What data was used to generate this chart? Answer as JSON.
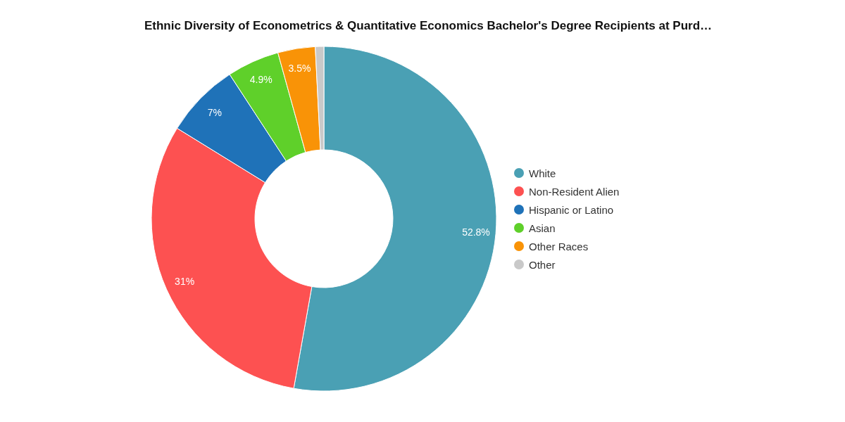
{
  "chart_data": {
    "type": "donut",
    "title": "Ethnic Diversity of Econometrics & Quantitative Economics Bachelor's Degree Recipients at Purd…",
    "categories": [
      "White",
      "Non-Resident Alien",
      "Hispanic or Latino",
      "Asian",
      "Other Races",
      "Other"
    ],
    "values": [
      52.8,
      31,
      7,
      4.9,
      3.5,
      0.8
    ],
    "colors": [
      "#4aa0b4",
      "#fd5151",
      "#1f72b8",
      "#5fd02a",
      "#f99307",
      "#c9c9c9"
    ],
    "value_labels": [
      "52.8%",
      "31%",
      "7%",
      "4.9%",
      "3.5%",
      null
    ],
    "legend": "right"
  }
}
